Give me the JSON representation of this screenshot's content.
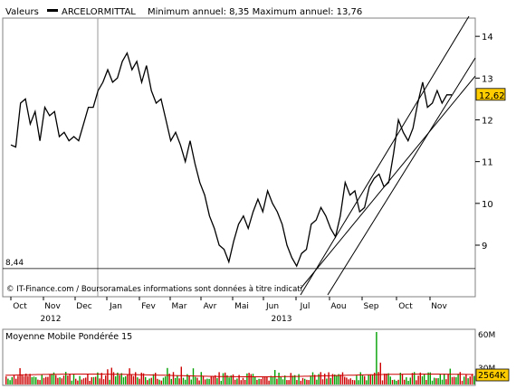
{
  "header": {
    "valeurs_label": "Valeurs",
    "series_name": "ARCELORMITTAL",
    "min_max_text": "Minimum annuel: 8,35 Maximum annuel: 13,76"
  },
  "footer_note": "© IT-Finance.com / BoursoramaLes informations sont données à titre indicati",
  "volume_panel": {
    "title": "Moyenne Mobile Pondérée 15",
    "y_tick_labels": [
      "60M",
      "30M"
    ],
    "last_volume_label": "2564K",
    "volume_unit_max": 60
  },
  "colors": {
    "price_line": "#000000",
    "channel_line": "#000000",
    "last_price_box": "#ffcc00",
    "volume_up": "#00a000",
    "volume_down": "#cc0000",
    "moving_average": "#cc0000",
    "frame": "#808080",
    "background": "#ffffff"
  },
  "chart_data": {
    "type": "line",
    "title": "ARCELORMITTAL",
    "subtitle": "Minimum annuel: 8,35 Maximum annuel: 13,76",
    "x_tick_labels": [
      "Oct",
      "Nov",
      "Dec",
      "Jan",
      "Fev",
      "Mar",
      "Avr",
      "Mai",
      "Jun",
      "Jul",
      "Aou",
      "Sep",
      "Oct",
      "Nov"
    ],
    "x_year_labels": [
      "2012",
      "2013"
    ],
    "y_tick_labels": [
      "14",
      "13",
      "12",
      "11",
      "10",
      "9"
    ],
    "ylim": [
      8.35,
      14.35
    ],
    "last_value_label": "12,62",
    "reference_value_label": "8,44",
    "reference_value": 8.44,
    "grid": false,
    "series": [
      {
        "values": [
          11.4,
          11.35,
          12.4,
          12.5,
          11.9,
          12.2,
          11.5,
          12.3,
          12.1,
          12.2,
          11.6,
          11.7,
          11.5,
          11.6,
          11.5,
          11.9,
          12.3,
          12.3,
          12.7,
          12.9,
          13.2,
          12.9,
          13.0,
          13.4,
          13.6,
          13.2,
          13.4,
          12.9,
          13.3,
          12.7,
          12.4,
          12.5,
          12.0,
          11.5,
          11.7,
          11.4,
          11.0,
          11.5,
          10.95,
          10.5,
          10.2,
          9.7,
          9.4,
          9.0,
          8.9,
          8.6,
          9.1,
          9.5,
          9.7,
          9.4,
          9.8,
          10.1,
          9.8,
          10.3,
          10.0,
          9.8,
          9.5,
          9.0,
          8.7,
          8.5,
          8.8,
          8.9,
          9.5,
          9.6,
          9.9,
          9.7,
          9.4,
          9.2,
          9.7,
          10.5,
          10.2,
          10.3,
          9.8,
          9.9,
          10.4,
          10.6,
          10.7,
          10.4,
          10.5,
          11.2,
          12.0,
          11.7,
          11.5,
          11.8,
          12.4,
          12.9,
          12.3,
          12.4,
          12.7,
          12.4,
          12.6,
          12.6
        ]
      }
    ],
    "trend_channel": {
      "lower_line": [
        {
          "date": "Jul 2013",
          "value": 8.35
        },
        {
          "date": "end Nov 2013",
          "value": 13.05
        }
      ],
      "upper_line": [
        {
          "date": "Jul 2013",
          "value": 9.0
        },
        {
          "date": "end Nov 2013",
          "value": 14.1
        }
      ]
    },
    "reference_cursor": "Jan 2013"
  }
}
